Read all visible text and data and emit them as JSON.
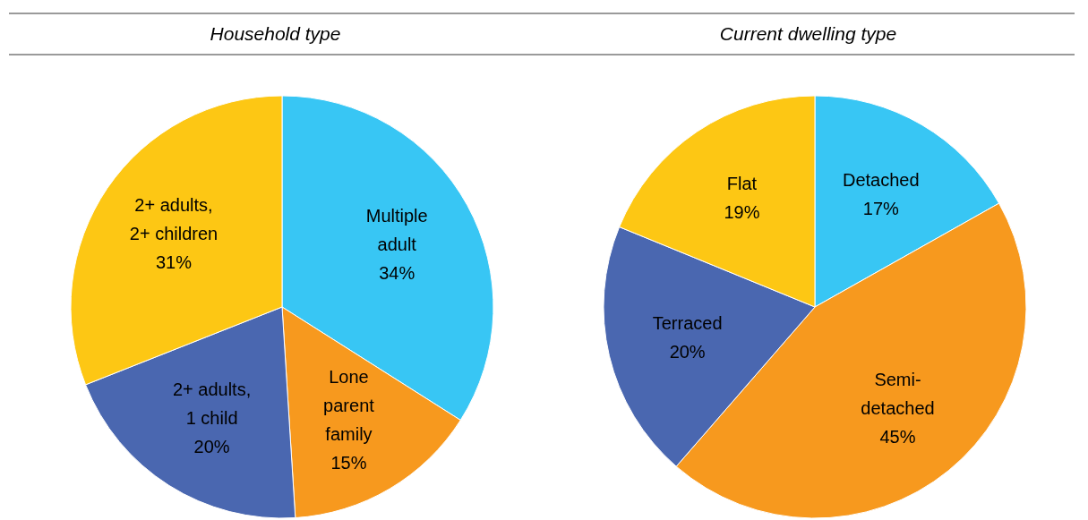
{
  "chart_data": [
    {
      "type": "pie",
      "title": "Household type",
      "categories": [
        "Multiple\nadult",
        "Lone\nparent\nfamily",
        "2+ adults,\n1 child",
        "2+ adults,\n2+ children"
      ],
      "values": [
        34,
        15,
        20,
        31
      ],
      "colors": [
        "#38c6f4",
        "#f7991e",
        "#4a67b0",
        "#fdc714"
      ],
      "value_labels": [
        "34%",
        "15%",
        "20%",
        "31%"
      ]
    },
    {
      "type": "pie",
      "title": "Current dwelling type",
      "categories": [
        "Detached",
        "Semi-\ndetached",
        "Terraced",
        "Flat"
      ],
      "values": [
        17,
        45,
        20,
        19
      ],
      "colors": [
        "#38c6f4",
        "#f7991e",
        "#4a67b0",
        "#fdc714"
      ],
      "value_labels": [
        "17%",
        "45%",
        "20%",
        "19%"
      ]
    }
  ]
}
